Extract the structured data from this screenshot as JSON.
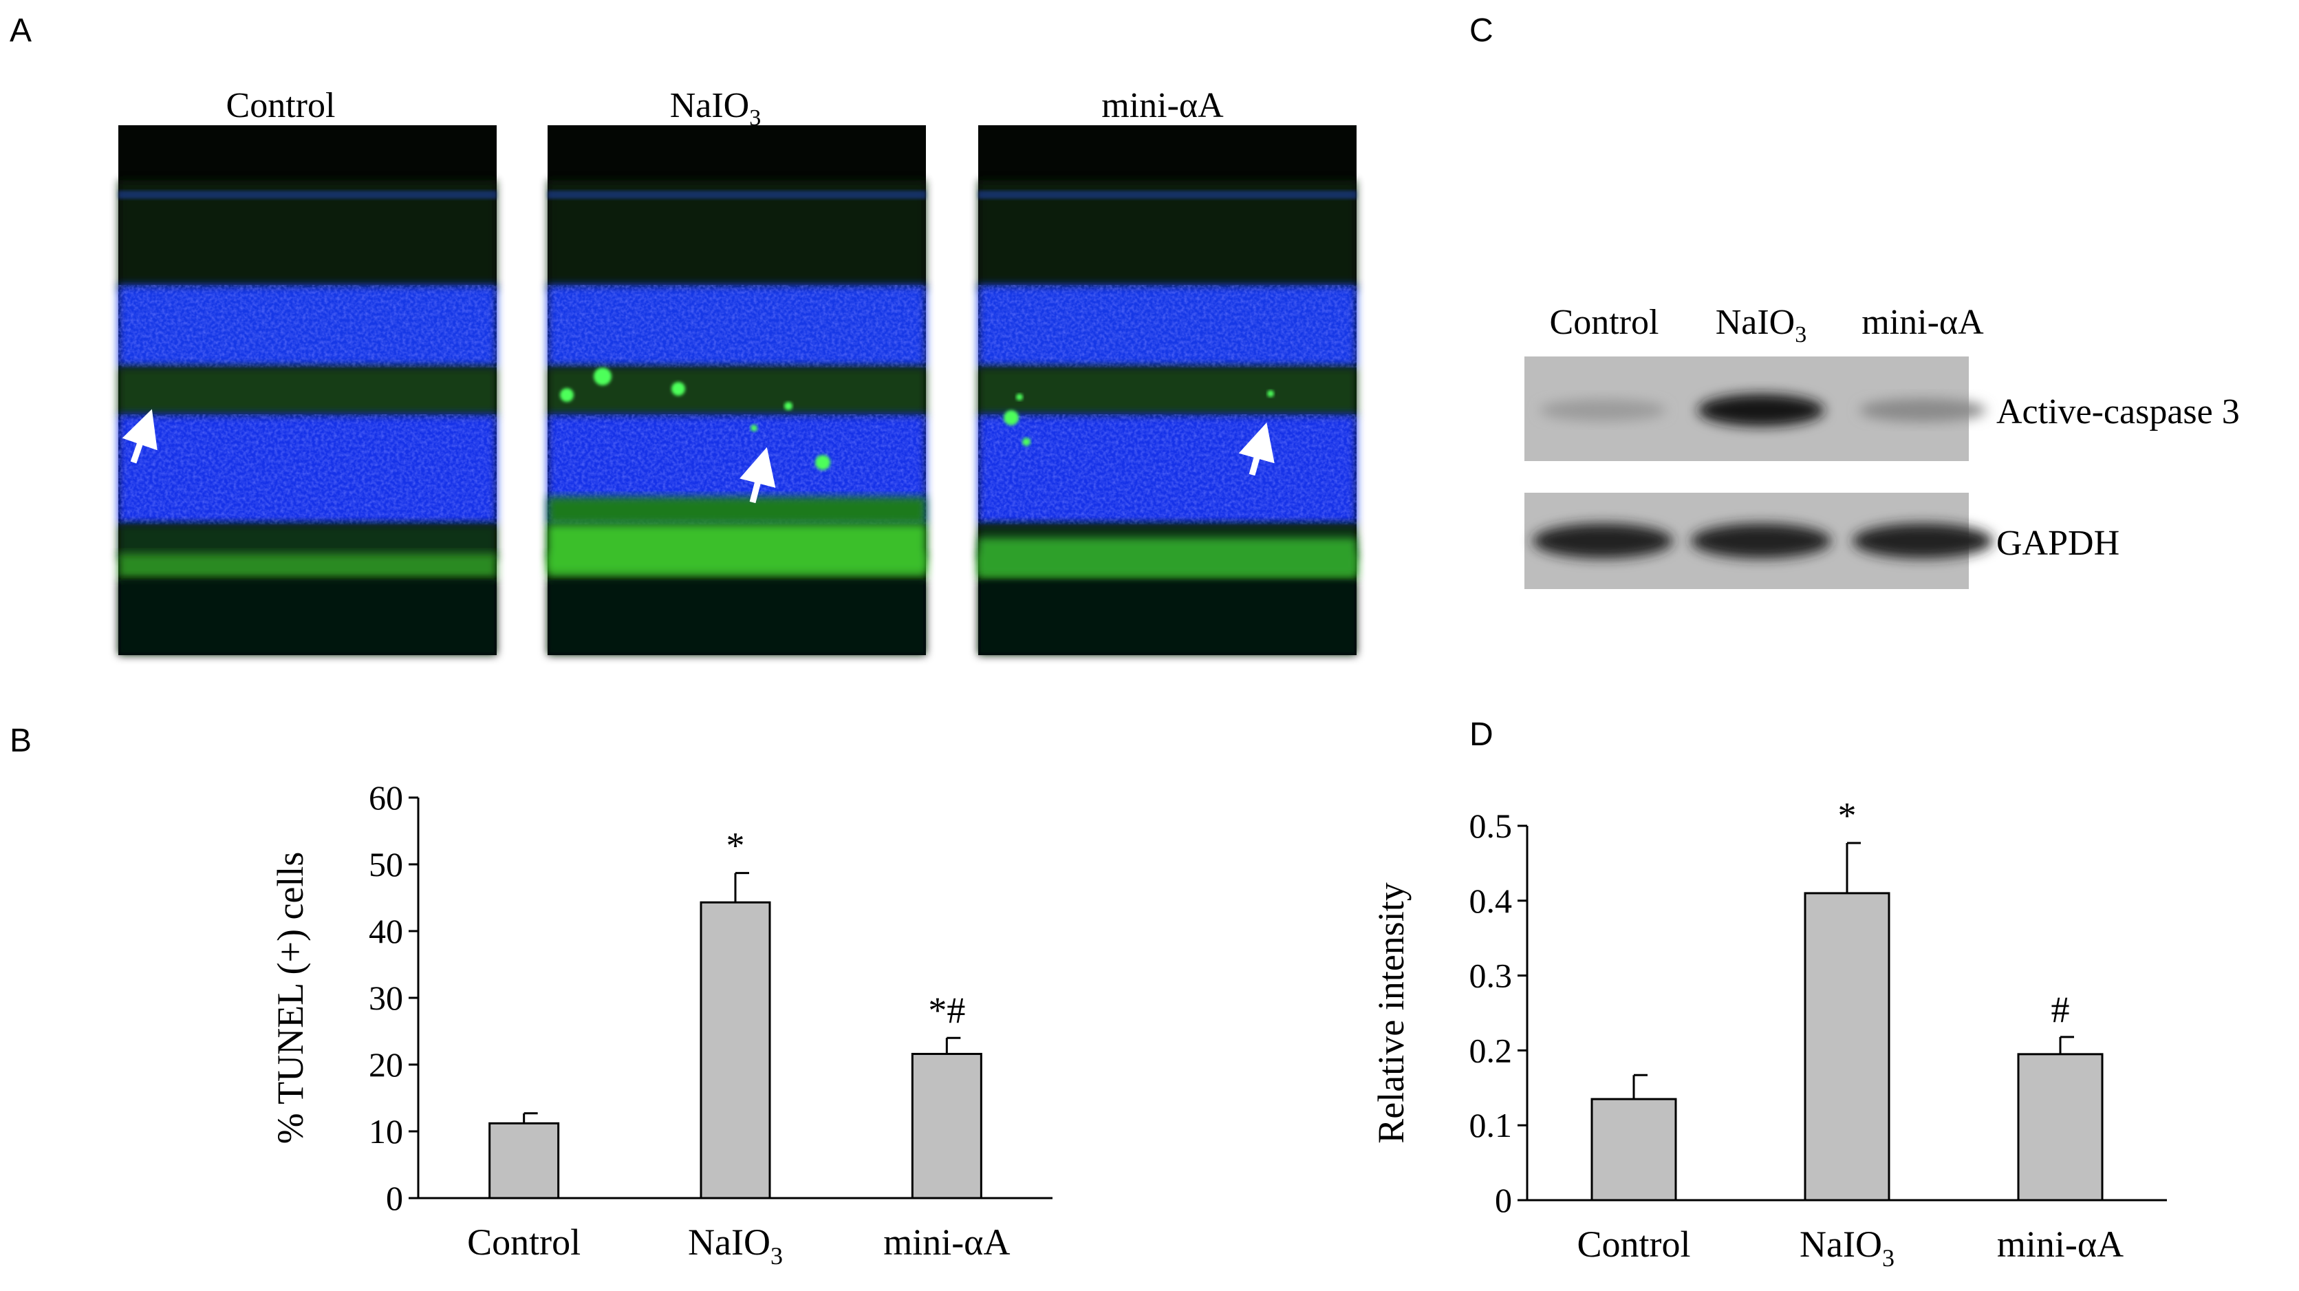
{
  "panel_letters": {
    "a": "A",
    "b": "B",
    "c": "C",
    "d": "D"
  },
  "panel_a": {
    "groups": [
      {
        "label": "Control",
        "sub": ""
      },
      {
        "label": "NaIO",
        "sub": "3"
      },
      {
        "label": "mini-αA",
        "sub": ""
      }
    ]
  },
  "panel_c": {
    "lanes": [
      {
        "label": "Control",
        "sub": ""
      },
      {
        "label": "NaIO",
        "sub": "3"
      },
      {
        "label": "mini-αA",
        "sub": ""
      }
    ],
    "rows": [
      {
        "label": "Active-caspase 3",
        "band_intensity": [
          0.2,
          0.95,
          0.3
        ]
      },
      {
        "label": "GAPDH",
        "band_intensity": [
          0.9,
          0.9,
          0.9
        ]
      }
    ]
  },
  "chart_data": [
    {
      "panel": "B",
      "type": "bar",
      "categories": [
        {
          "label": "Control",
          "sub": ""
        },
        {
          "label": "NaIO",
          "sub": "3"
        },
        {
          "label": "mini-αA",
          "sub": ""
        }
      ],
      "values": [
        11.2,
        44.3,
        21.6
      ],
      "errors": [
        1.5,
        4.4,
        2.4
      ],
      "annotations": [
        "",
        "*",
        "*#"
      ],
      "ylabel": "% TUNEL (+) cells",
      "ylim": [
        0,
        60
      ],
      "yticks": [
        "0",
        "10",
        "20",
        "30",
        "40",
        "50",
        "60"
      ],
      "bar_color": "#c0c0c0",
      "grid": false
    },
    {
      "panel": "D",
      "type": "bar",
      "categories": [
        {
          "label": "Control",
          "sub": ""
        },
        {
          "label": "NaIO",
          "sub": "3"
        },
        {
          "label": "mini-αA",
          "sub": ""
        }
      ],
      "values": [
        0.135,
        0.41,
        0.195
      ],
      "errors": [
        0.032,
        0.067,
        0.023
      ],
      "annotations": [
        "",
        "*",
        "#"
      ],
      "ylabel": "Relative intensity",
      "ylim": [
        0,
        0.5
      ],
      "yticks": [
        "0",
        "0.1",
        "0.2",
        "0.3",
        "0.4",
        "0.5"
      ],
      "bar_color": "#c0c0c0",
      "grid": false
    }
  ]
}
